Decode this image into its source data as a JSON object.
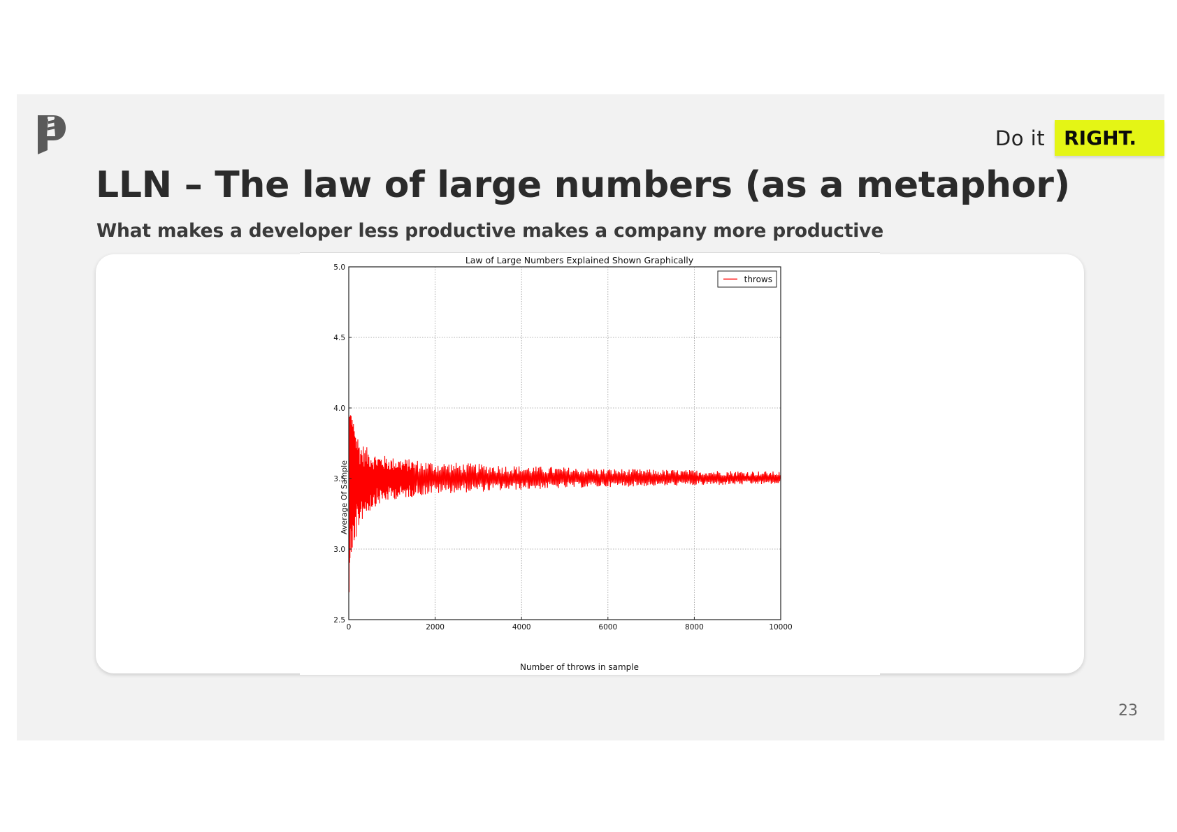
{
  "slide": {
    "brand_prefix": "Do it",
    "brand_emphasis": "RIGHT.",
    "title": "LLN – The law of large numbers (as a metaphor)",
    "subtitle": "What makes a developer less productive makes a company more productive",
    "page_number": "23",
    "logo_icon": "lighthouse-p-logo-icon",
    "accent_color": "#e4f515"
  },
  "chart_data": {
    "type": "line",
    "title": "Law of Large Numbers Explained Shown Graphically",
    "xlabel": "Number of throws in sample",
    "ylabel": "Average Of Sample",
    "xlim": [
      0,
      10000
    ],
    "ylim": [
      2.5,
      5.0
    ],
    "x_ticks": [
      0,
      2000,
      4000,
      6000,
      8000,
      10000
    ],
    "x_tick_labels": [
      "0",
      "2000",
      "4000",
      "6000",
      "8000",
      "10000"
    ],
    "y_ticks": [
      2.5,
      3.0,
      3.5,
      4.0,
      4.5,
      5.0
    ],
    "y_tick_labels": [
      "2.5",
      "3.0",
      "3.5",
      "4.0",
      "4.5",
      "5.0"
    ],
    "grid": true,
    "legend_position": "top-right",
    "series": [
      {
        "name": "throws",
        "color": "#ff0000",
        "x_range": [
          1,
          10000
        ],
        "center": 3.5,
        "envelope": [
          {
            "x": 1,
            "upper": 4.05,
            "lower": 2.55
          },
          {
            "x": 20,
            "upper": 4.05,
            "lower": 2.85
          },
          {
            "x": 100,
            "upper": 3.9,
            "lower": 3.0
          },
          {
            "x": 300,
            "upper": 3.75,
            "lower": 3.2
          },
          {
            "x": 600,
            "upper": 3.68,
            "lower": 3.3
          },
          {
            "x": 1000,
            "upper": 3.65,
            "lower": 3.35
          },
          {
            "x": 2000,
            "upper": 3.62,
            "lower": 3.39
          },
          {
            "x": 4000,
            "upper": 3.59,
            "lower": 3.42
          },
          {
            "x": 6000,
            "upper": 3.57,
            "lower": 3.44
          },
          {
            "x": 8000,
            "upper": 3.56,
            "lower": 3.45
          },
          {
            "x": 10000,
            "upper": 3.55,
            "lower": 3.46
          }
        ]
      }
    ]
  }
}
